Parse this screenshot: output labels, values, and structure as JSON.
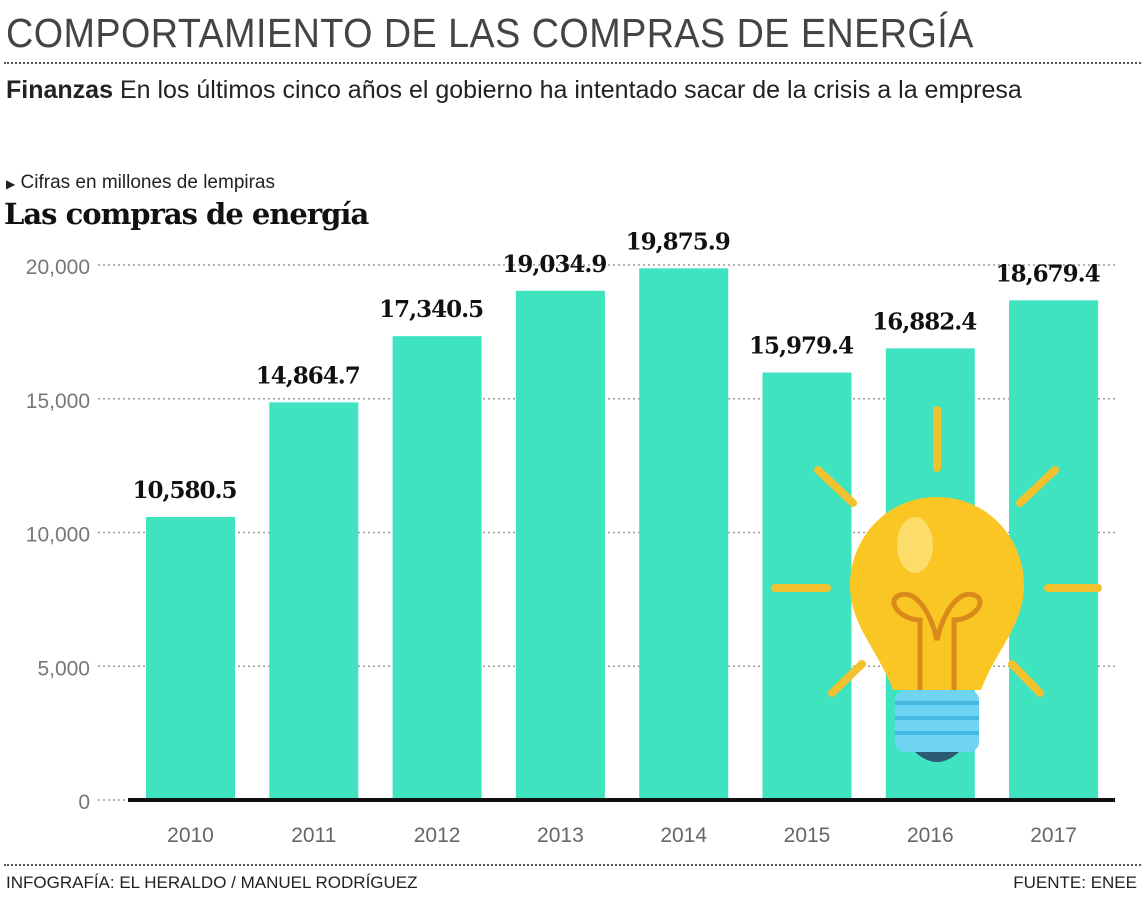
{
  "header": {
    "title": "COMPORTAMIENTO DE LAS COMPRAS DE ENERGÍA",
    "section": "Finanzas",
    "subtitle": "En los últimos cinco años el gobierno ha intentado sacar de la crisis a la empresa"
  },
  "note": "Cifras en millones de lempiras",
  "footer": {
    "credit": "INFOGRAFÍA: EL HERALDO / MANUEL RODRÍGUEZ",
    "source": "FUENTE: ENEE"
  },
  "chart_data": {
    "type": "bar",
    "title": "Las compras de energía",
    "categories": [
      "2010",
      "2011",
      "2012",
      "2013",
      "2014",
      "2015",
      "2016",
      "2017"
    ],
    "values": [
      10580.5,
      14864.7,
      17340.5,
      19034.9,
      19875.9,
      15979.4,
      16882.4,
      18679.4
    ],
    "data_labels": [
      "10,580.5",
      "14,864.7",
      "17,340.5",
      "19,034.9",
      "19,875.9",
      "15,979.4",
      "16,882.4",
      "18,679.4"
    ],
    "yticks": [
      0,
      5000,
      10000,
      15000,
      20000
    ],
    "ytick_labels": [
      "0",
      "5,000",
      "10,000",
      "15,000",
      "20,000"
    ],
    "ylim": [
      0,
      20000
    ],
    "grid": true,
    "bar_color": "#40e3c0",
    "decoration": "lightbulb-icon"
  }
}
